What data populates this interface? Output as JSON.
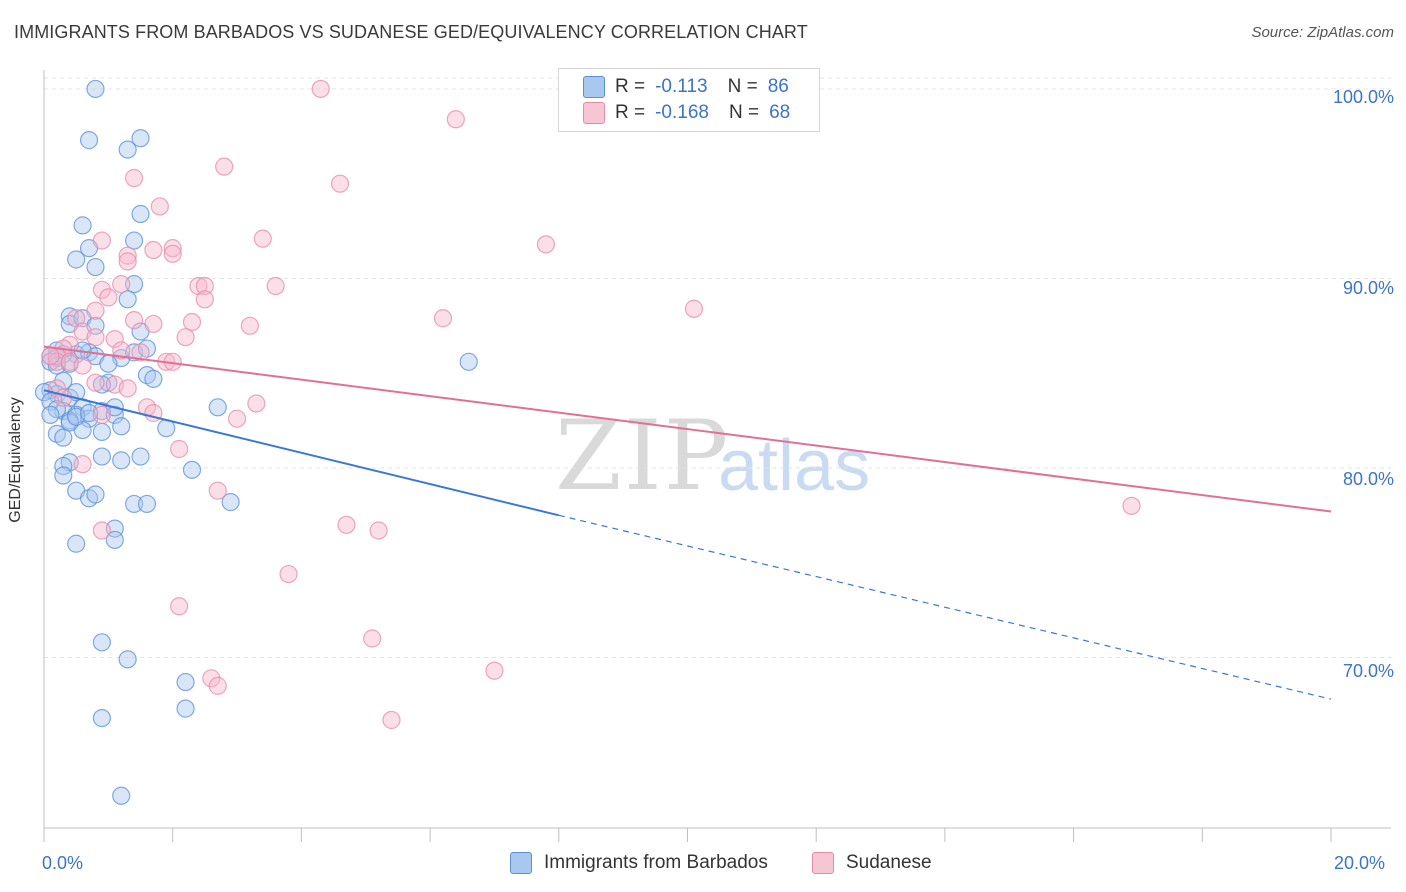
{
  "title": "IMMIGRANTS FROM BARBADOS VS SUDANESE GED/EQUIVALENCY CORRELATION CHART",
  "source": "Source: ZipAtlas.com",
  "watermark": {
    "zip": "ZIP",
    "atlas": "atlas"
  },
  "legend": {
    "series1": {
      "r_label": "R =",
      "r_value": "-0.113",
      "n_label": "N =",
      "n_value": "86"
    },
    "series2": {
      "r_label": "R =",
      "r_value": "-0.168",
      "n_label": "N =",
      "n_value": "68"
    }
  },
  "bottom_legend": {
    "series1": "Immigrants from Barbados",
    "series2": "Sudanese"
  },
  "colors": {
    "series1_fill": "#a8c8f0",
    "series1_stroke": "#5b8fd6",
    "series1_line": "#3b78d4",
    "series2_fill": "#f6b8cb",
    "series2_stroke": "#e58aa8",
    "series2_line": "#e07098",
    "tick_text": "#3c74c8",
    "grid": "#e3e3e3"
  },
  "chart_data": {
    "type": "scatter",
    "title": "IMMIGRANTS FROM BARBADOS VS SUDANESE GED/EQUIVALENCY CORRELATION CHART",
    "xlabel": "",
    "ylabel": "GED/Equivalency",
    "xlim": [
      0,
      20
    ],
    "ylim": [
      61,
      101
    ],
    "x_tick_labels": [
      "0.0%",
      "20.0%"
    ],
    "y_ticks": [
      70,
      80,
      90,
      100
    ],
    "y_tick_labels": [
      "70.0%",
      "80.0%",
      "90.0%",
      "100.0%"
    ],
    "series": [
      {
        "name": "Immigrants from Barbados",
        "r": -0.113,
        "n": 86,
        "trend": {
          "x0": 0,
          "y0": 84.1,
          "x1": 8,
          "y1": 77.5,
          "dash_x1": 20,
          "dash_y1": 67.8
        },
        "points": [
          [
            0.8,
            100.0
          ],
          [
            0.7,
            97.3
          ],
          [
            1.3,
            96.8
          ],
          [
            1.5,
            97.4
          ],
          [
            1.5,
            93.4
          ],
          [
            0.6,
            92.8
          ],
          [
            1.4,
            92.0
          ],
          [
            0.7,
            91.6
          ],
          [
            0.5,
            91.0
          ],
          [
            0.8,
            90.6
          ],
          [
            1.4,
            89.7
          ],
          [
            1.3,
            88.9
          ],
          [
            0.4,
            88.0
          ],
          [
            0.4,
            87.6
          ],
          [
            0.6,
            87.9
          ],
          [
            0.8,
            87.5
          ],
          [
            1.5,
            87.2
          ],
          [
            0.2,
            86.2
          ],
          [
            0.1,
            85.9
          ],
          [
            0.2,
            85.8
          ],
          [
            0.1,
            85.6
          ],
          [
            0.5,
            86.0
          ],
          [
            0.7,
            86.1
          ],
          [
            0.8,
            85.9
          ],
          [
            1.2,
            85.8
          ],
          [
            1.4,
            86.1
          ],
          [
            1.6,
            86.3
          ],
          [
            1.0,
            85.5
          ],
          [
            0.3,
            84.6
          ],
          [
            0.1,
            84.1
          ],
          [
            0.2,
            83.9
          ],
          [
            0.4,
            83.7
          ],
          [
            0.5,
            84.0
          ],
          [
            0.6,
            83.2
          ],
          [
            0.3,
            83.0
          ],
          [
            0.5,
            82.8
          ],
          [
            0.7,
            82.6
          ],
          [
            0.9,
            83.0
          ],
          [
            1.1,
            82.8
          ],
          [
            0.4,
            82.5
          ],
          [
            0.6,
            82.0
          ],
          [
            0.2,
            81.8
          ],
          [
            0.3,
            81.6
          ],
          [
            0.9,
            81.9
          ],
          [
            1.2,
            82.2
          ],
          [
            1.1,
            83.2
          ],
          [
            1.6,
            84.9
          ],
          [
            1.7,
            84.7
          ],
          [
            1.9,
            82.1
          ],
          [
            2.7,
            83.2
          ],
          [
            0.4,
            80.3
          ],
          [
            0.3,
            80.1
          ],
          [
            0.9,
            80.6
          ],
          [
            1.2,
            80.4
          ],
          [
            1.5,
            80.6
          ],
          [
            2.3,
            79.9
          ],
          [
            0.3,
            79.6
          ],
          [
            0.5,
            78.8
          ],
          [
            0.7,
            78.4
          ],
          [
            0.8,
            78.6
          ],
          [
            1.4,
            78.1
          ],
          [
            1.6,
            78.1
          ],
          [
            2.9,
            78.2
          ],
          [
            1.1,
            76.8
          ],
          [
            1.1,
            76.2
          ],
          [
            0.5,
            76.0
          ],
          [
            0.9,
            70.8
          ],
          [
            1.3,
            69.9
          ],
          [
            2.2,
            68.7
          ],
          [
            2.2,
            67.3
          ],
          [
            0.9,
            66.8
          ],
          [
            1.2,
            62.7
          ],
          [
            6.6,
            85.6
          ],
          [
            0.0,
            84.0
          ],
          [
            0.1,
            83.5
          ],
          [
            0.2,
            83.1
          ],
          [
            0.4,
            82.4
          ],
          [
            0.5,
            82.7
          ],
          [
            0.3,
            86.0
          ],
          [
            0.6,
            86.2
          ],
          [
            0.2,
            85.4
          ],
          [
            0.4,
            85.5
          ],
          [
            1.0,
            84.5
          ],
          [
            0.7,
            82.9
          ],
          [
            0.9,
            84.4
          ],
          [
            0.1,
            82.8
          ]
        ]
      },
      {
        "name": "Sudanese",
        "r": -0.168,
        "n": 68,
        "trend": {
          "x0": 0,
          "y0": 86.4,
          "x1": 20,
          "y1": 77.7
        },
        "points": [
          [
            4.3,
            100.0
          ],
          [
            6.4,
            98.4
          ],
          [
            2.8,
            95.9
          ],
          [
            1.4,
            95.3
          ],
          [
            4.6,
            95.0
          ],
          [
            1.8,
            93.8
          ],
          [
            3.4,
            92.1
          ],
          [
            7.8,
            91.8
          ],
          [
            2.0,
            91.6
          ],
          [
            1.7,
            91.5
          ],
          [
            1.3,
            91.2
          ],
          [
            2.0,
            91.3
          ],
          [
            1.3,
            90.9
          ],
          [
            0.9,
            92.0
          ],
          [
            1.2,
            89.7
          ],
          [
            2.4,
            89.6
          ],
          [
            2.5,
            89.6
          ],
          [
            3.6,
            89.6
          ],
          [
            0.9,
            89.4
          ],
          [
            1.0,
            89.0
          ],
          [
            2.5,
            88.9
          ],
          [
            0.8,
            88.3
          ],
          [
            10.1,
            88.4
          ],
          [
            6.2,
            87.9
          ],
          [
            1.4,
            87.8
          ],
          [
            1.7,
            87.6
          ],
          [
            2.3,
            87.7
          ],
          [
            3.2,
            87.5
          ],
          [
            0.5,
            87.9
          ],
          [
            0.6,
            87.2
          ],
          [
            0.4,
            86.5
          ],
          [
            0.8,
            86.9
          ],
          [
            1.1,
            86.8
          ],
          [
            2.2,
            86.9
          ],
          [
            0.3,
            86.3
          ],
          [
            0.2,
            85.9
          ],
          [
            0.2,
            85.6
          ],
          [
            0.4,
            85.6
          ],
          [
            0.6,
            85.4
          ],
          [
            1.2,
            86.2
          ],
          [
            1.5,
            86.1
          ],
          [
            1.9,
            85.6
          ],
          [
            2.0,
            85.6
          ],
          [
            1.1,
            84.4
          ],
          [
            0.8,
            84.5
          ],
          [
            1.3,
            84.2
          ],
          [
            0.2,
            84.2
          ],
          [
            0.3,
            83.7
          ],
          [
            3.3,
            83.4
          ],
          [
            1.6,
            83.2
          ],
          [
            1.7,
            82.9
          ],
          [
            3.0,
            82.6
          ],
          [
            0.9,
            82.8
          ],
          [
            2.1,
            81.0
          ],
          [
            0.6,
            80.2
          ],
          [
            2.7,
            78.8
          ],
          [
            4.7,
            77.0
          ],
          [
            5.2,
            76.7
          ],
          [
            0.9,
            76.7
          ],
          [
            3.8,
            74.4
          ],
          [
            2.1,
            72.7
          ],
          [
            5.1,
            71.0
          ],
          [
            7.0,
            69.3
          ],
          [
            2.6,
            68.9
          ],
          [
            2.7,
            68.5
          ],
          [
            5.4,
            66.7
          ],
          [
            16.9,
            78.0
          ],
          [
            0.1,
            85.9
          ]
        ]
      }
    ]
  }
}
